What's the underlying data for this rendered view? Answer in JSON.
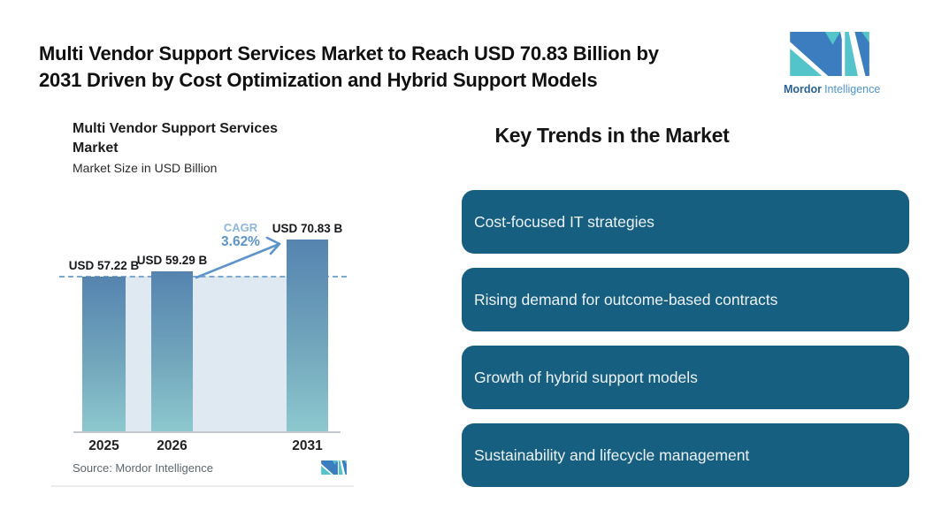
{
  "header": {
    "title_lines": [
      "Multi Vendor Support Services Market to Reach USD 70.83 Billion by",
      "2031 Driven by Cost Optimization and Hybrid Support Models"
    ]
  },
  "brand": {
    "name_bold": "Mordor",
    "name_light": "Intelligence"
  },
  "chart": {
    "title_lines": [
      "Multi Vendor Support Services",
      "Market"
    ],
    "subtitle": "Market Size in USD Billion",
    "cagr_label": "CAGR",
    "cagr_value": "3.62%",
    "source": "Source: Mordor Intelligence"
  },
  "chart_data": {
    "type": "bar",
    "title": "Multi Vendor Support Services Market",
    "subtitle": "Market Size in USD Billion",
    "categories": [
      "2025",
      "2026",
      "2031"
    ],
    "values": [
      57.22,
      59.29,
      70.83
    ],
    "value_labels": [
      "USD 57.22 B",
      "USD 59.29 B",
      "USD 70.83 B"
    ],
    "cagr_percent": 3.62,
    "baseline_value": 57.22,
    "ylabel": "Market Size in USD Billion",
    "legend": "none",
    "grid": "off",
    "annotations": [
      "dashed baseline at 57.22",
      "CAGR 3.62% growth arrow from 2026 to 2031"
    ]
  },
  "colors": {
    "bar_top": "#5584b0",
    "bar_mid": "#72a6bc",
    "bar_bottom": "#8dc8ce",
    "band": "#dfe9f2",
    "dashed_line": "#7ca8d1",
    "arrow": "#5d94c9",
    "card_background": "#175f80",
    "logo_teal": "#54c4cb",
    "logo_blue": "#3b7dbe"
  },
  "key_trends": {
    "heading": "Key Trends in the Market",
    "items": [
      "Cost-focused IT strategies",
      "Rising demand for outcome-based contracts",
      "Growth of hybrid support models",
      "Sustainability and lifecycle management"
    ]
  }
}
